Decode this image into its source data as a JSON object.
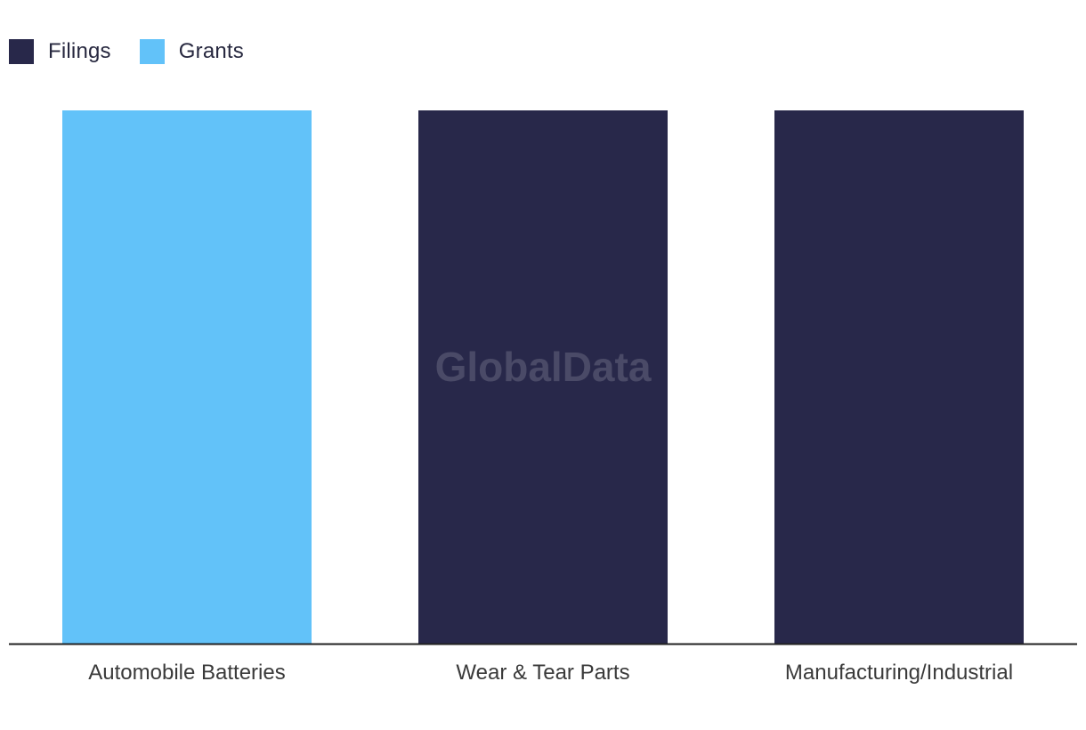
{
  "legend": {
    "items": [
      {
        "label": "Filings",
        "color": "#28284a"
      },
      {
        "label": "Grants",
        "color": "#62c2f9"
      }
    ]
  },
  "watermark": "GlobalData",
  "chart_data": {
    "type": "bar",
    "categories": [
      "Automobile Batteries",
      "Wear & Tear Parts",
      "Manufacturing/Industrial"
    ],
    "series": [
      {
        "name": "Filings",
        "values": [
          null,
          1,
          1
        ]
      },
      {
        "name": "Grants",
        "values": [
          1,
          null,
          null
        ]
      }
    ],
    "ylim": [
      0,
      1
    ],
    "grid": false,
    "legend_position": "top-left"
  }
}
